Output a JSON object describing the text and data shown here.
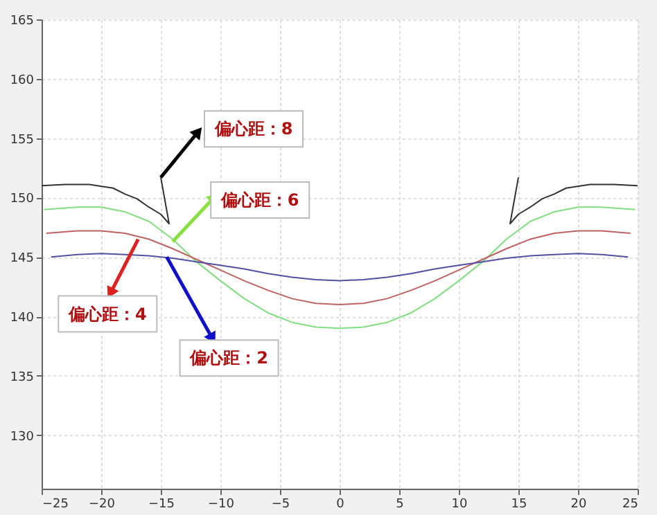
{
  "chart_data": {
    "type": "line",
    "xlim": [
      -25,
      25
    ],
    "ylim": [
      125.5,
      165
    ],
    "xticks": [
      -25,
      -20,
      -15,
      -10,
      -5,
      0,
      5,
      10,
      15,
      20,
      25
    ],
    "yticks": [
      130,
      135,
      140,
      145,
      150,
      155,
      160,
      165
    ],
    "grid": true,
    "marker": "none",
    "line_style": "solid",
    "series": [
      {
        "color": "#333333",
        "x": [
          -25,
          -23,
          -21,
          -19,
          -18,
          -17,
          -16,
          -15,
          -14.3,
          -15.0,
          null,
          15.0,
          14.3,
          15,
          16,
          17,
          18,
          19,
          21,
          23,
          25
        ],
        "values": [
          151,
          151.1,
          151.1,
          150.8,
          150.3,
          149.9,
          149.2,
          148.6,
          147.8,
          151.7,
          null,
          151.7,
          147.8,
          148.6,
          149.2,
          149.9,
          150.3,
          150.8,
          151.1,
          151.1,
          151
        ]
      },
      {
        "color": "#80dd80",
        "x": [
          -24.8,
          -22,
          -20,
          -18,
          -16,
          -14,
          -12,
          -10,
          -8,
          -6,
          -4,
          -2,
          0,
          2,
          4,
          6,
          8,
          10,
          12,
          14,
          16,
          18,
          20,
          22,
          24.8
        ],
        "values": [
          149,
          149.2,
          149.2,
          148.8,
          148,
          146.5,
          144.6,
          143,
          141.5,
          140.3,
          139.5,
          139.1,
          139,
          139.1,
          139.5,
          140.3,
          141.5,
          143,
          144.6,
          146.5,
          148,
          148.8,
          149.2,
          149.2,
          149
        ]
      },
      {
        "color": "#c06060",
        "x": [
          -24.6,
          -22,
          -20,
          -18,
          -16,
          -14,
          -12,
          -10,
          -8,
          -6,
          -4,
          -2,
          0,
          2,
          4,
          6,
          8,
          10,
          12,
          14,
          16,
          18,
          20,
          22,
          24.4
        ],
        "values": [
          147,
          147.2,
          147.2,
          147,
          146.5,
          145.7,
          144.8,
          143.9,
          143,
          142.2,
          141.5,
          141.1,
          141,
          141.1,
          141.5,
          142.2,
          143,
          143.9,
          144.8,
          145.7,
          146.5,
          147,
          147.2,
          147.2,
          147
        ]
      },
      {
        "color": "#5050a0",
        "x": [
          -24.2,
          -22,
          -20,
          -18,
          -16,
          -14,
          -12,
          -10,
          -8,
          -6,
          -4,
          -2,
          0,
          2,
          4,
          6,
          8,
          10,
          12,
          14,
          16,
          18,
          20,
          22,
          24.2
        ],
        "values": [
          145,
          145.2,
          145.3,
          145.2,
          145.1,
          144.9,
          144.6,
          144.3,
          144,
          143.6,
          143.3,
          143.1,
          143,
          143.1,
          143.3,
          143.6,
          144,
          144.3,
          144.6,
          144.9,
          145.1,
          145.2,
          145.3,
          145.2,
          145
        ]
      }
    ],
    "annotations": [
      {
        "text": "偏心距：8",
        "x": -15.0,
        "y": 151.7
      },
      {
        "text": "偏心距：6",
        "x": -14.0,
        "y": 146.3
      },
      {
        "text": "偏心距：4",
        "x": -16.9,
        "y": 146.5
      },
      {
        "text": "偏心距：2",
        "x": -14.5,
        "y": 145.0
      }
    ]
  }
}
